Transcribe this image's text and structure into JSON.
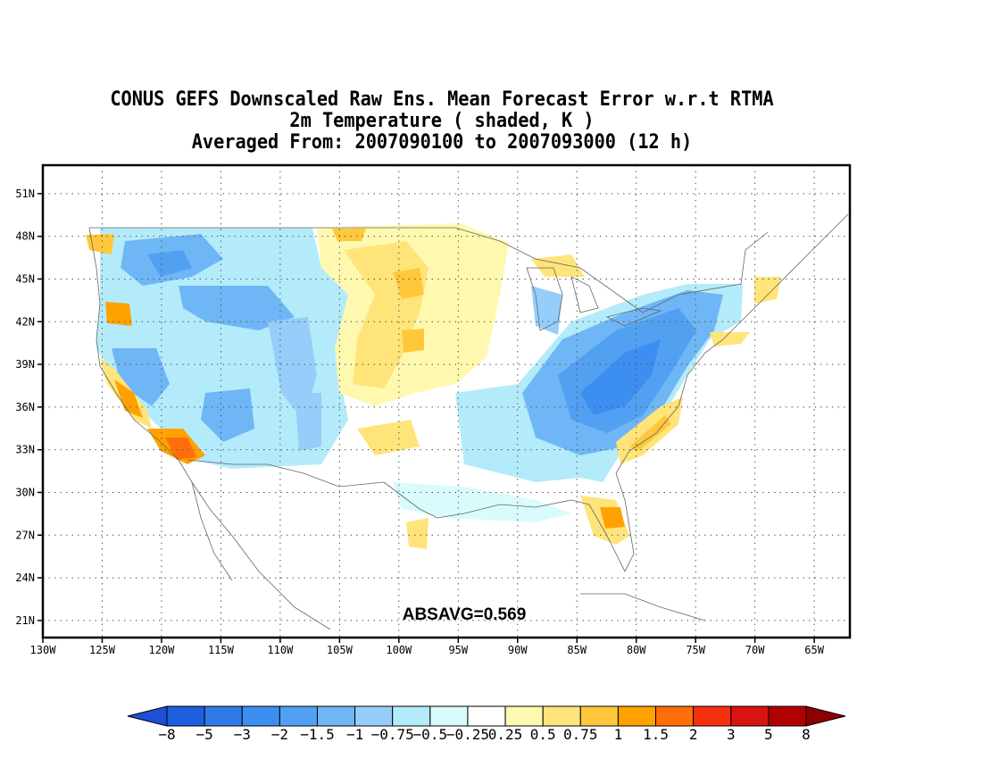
{
  "title": {
    "line1": "CONUS GEFS Downscaled Raw Ens. Mean Forecast Error w.r.t RTMA",
    "line2": "2m Temperature ( shaded, K )",
    "line3": "Averaged From: 2007090100 to 2007093000 (12 h)"
  },
  "map": {
    "lon_range": [
      -130,
      -62
    ],
    "lat_range": [
      19.8,
      53
    ],
    "lon_ticks": [
      "130W",
      "125W",
      "120W",
      "115W",
      "110W",
      "105W",
      "100W",
      "95W",
      "90W",
      "85W",
      "80W",
      "75W",
      "70W",
      "65W"
    ],
    "lon_values": [
      -130,
      -125,
      -120,
      -115,
      -110,
      -105,
      -100,
      -95,
      -90,
      -85,
      -80,
      -75,
      -70,
      -65
    ],
    "lat_ticks": [
      "21N",
      "24N",
      "27N",
      "30N",
      "33N",
      "36N",
      "39N",
      "42N",
      "45N",
      "48N",
      " 51N"
    ],
    "lat_values": [
      21,
      24,
      27,
      30,
      33,
      36,
      39,
      42,
      45,
      48,
      51
    ],
    "grid": "dotted",
    "annotation": "ABSAVG=0.569"
  },
  "colorbar": {
    "labels": [
      "-8",
      "-5",
      "-3",
      "-2",
      "-1.5",
      "-1",
      "-0.75",
      "-0.5",
      "-0.25",
      "0.25",
      "0.5",
      "0.75",
      "1",
      "1.5",
      "2",
      "3",
      "5",
      "8"
    ],
    "colors": [
      "#1e5fe0",
      "#2e7be8",
      "#3c8ef0",
      "#52a0f2",
      "#6fb6f6",
      "#96cdfa",
      "#b4ebfa",
      "#d9fbfc",
      "#ffffff",
      "#fff9b0",
      "#ffe47a",
      "#ffc83c",
      "#ffa200",
      "#ff6e0a",
      "#f5320f",
      "#d91410",
      "#b00000"
    ],
    "low_arrow_color": "#1e4fd8",
    "high_arrow_color": "#8c0000"
  }
}
